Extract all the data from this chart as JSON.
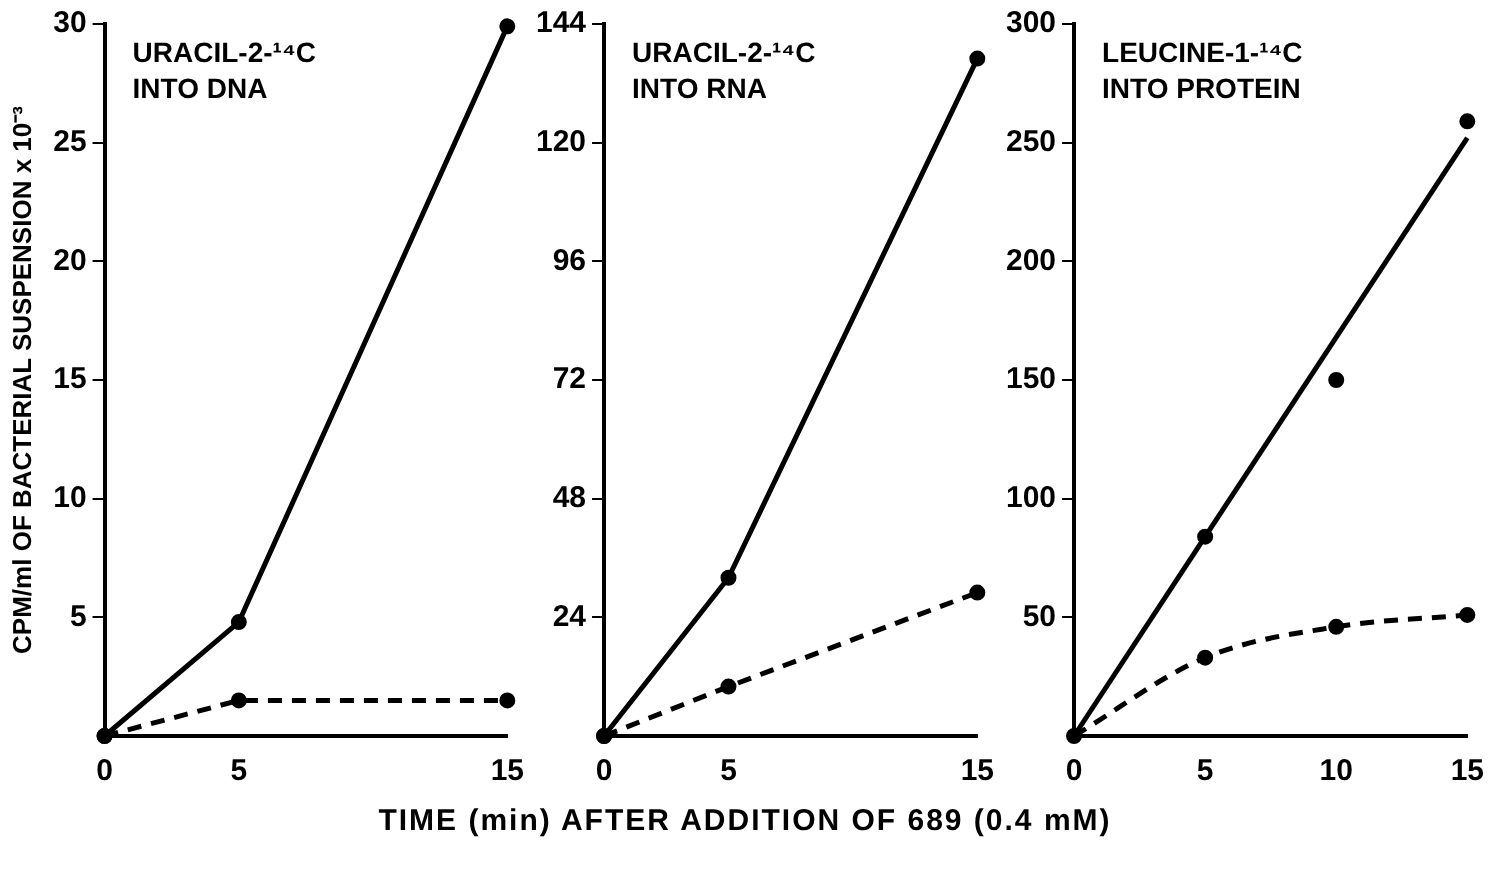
{
  "chart_data": [
    {
      "type": "line",
      "ylabel": "CPM/ml OF BACTERIAL SUSPENSION x 10⁻³",
      "annotations": [
        "URACIL-2-¹⁴C",
        "INTO DNA"
      ],
      "xlim": [
        0,
        15
      ],
      "xticks": [
        0,
        5,
        15
      ],
      "ylim": [
        0,
        30
      ],
      "yticks": [
        5,
        10,
        15,
        20,
        25,
        30
      ],
      "grid": false,
      "marker": "circle",
      "series": [
        {
          "color": "#000000",
          "line_style": "solid",
          "x": [
            0,
            5,
            15
          ],
          "values": [
            0,
            4.8,
            29.9
          ]
        },
        {
          "color": "#000000",
          "line_style": "dashed",
          "x": [
            0,
            5,
            15
          ],
          "values": [
            0,
            1.5,
            1.5
          ]
        }
      ]
    },
    {
      "type": "line",
      "xlabel": "TIME (min) AFTER ADDITION OF 689 (0.4 mM)",
      "annotations": [
        "URACIL-2-¹⁴C",
        "INTO RNA"
      ],
      "xlim": [
        0,
        15
      ],
      "xticks": [
        0,
        5,
        15
      ],
      "ylim": [
        0,
        144
      ],
      "yticks": [
        24,
        48,
        72,
        96,
        120,
        144
      ],
      "grid": false,
      "marker": "circle",
      "series": [
        {
          "color": "#000000",
          "line_style": "solid",
          "x": [
            0,
            5,
            15
          ],
          "values": [
            0,
            32,
            137
          ]
        },
        {
          "color": "#000000",
          "line_style": "dashed",
          "x": [
            0,
            5,
            15
          ],
          "values": [
            0,
            10,
            29
          ]
        }
      ]
    },
    {
      "type": "line",
      "annotations": [
        "LEUCINE-1-¹⁴C",
        "INTO PROTEIN"
      ],
      "xlim": [
        0,
        15
      ],
      "xticks": [
        0,
        5,
        10,
        15
      ],
      "ylim": [
        0,
        300
      ],
      "yticks": [
        50,
        100,
        150,
        200,
        250,
        300
      ],
      "grid": false,
      "series": [
        {
          "type": "scatter",
          "color": "#000000",
          "marker": "circle",
          "x": [
            5,
            10,
            15
          ],
          "values": [
            84,
            150,
            259
          ]
        },
        {
          "color": "#000000",
          "line_style": "solid",
          "x": [
            0,
            15
          ],
          "values": [
            0,
            252
          ]
        },
        {
          "color": "#000000",
          "line_style": "dashed",
          "marker": "circle",
          "x": [
            0,
            5,
            10,
            15
          ],
          "values": [
            0,
            33,
            46,
            51
          ]
        }
      ]
    }
  ]
}
